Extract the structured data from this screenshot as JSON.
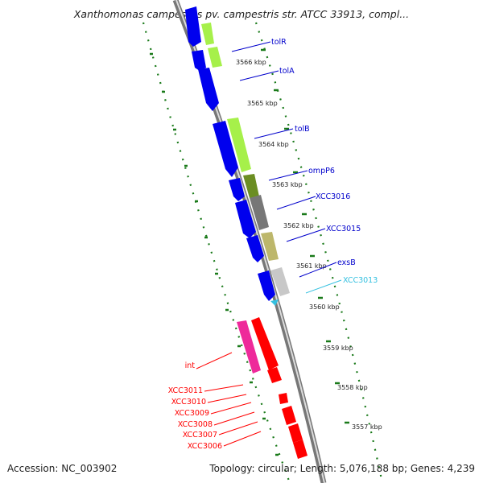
{
  "title": "Xanthomonas campestris pv. campestris str. ATCC 33913, compl...",
  "footer": {
    "accession": "Accession: NC_003902",
    "summary": "Topology: circular; Length: 5,076,188 bp; Genes: 4,239"
  },
  "kbp_ticks": [
    "3566 kbp",
    "3565 kbp",
    "3564 kbp",
    "3563 kbp",
    "3562 kbp",
    "3561 kbp",
    "3560 kbp",
    "3559 kbp",
    "3558 kbp",
    "3557 kbp"
  ],
  "gene_labels": [
    "tolR",
    "tolA",
    "tolB",
    "ompP6",
    "XCC3016",
    "XCC3015",
    "exsB",
    "XCC3013",
    "int",
    "XCC3011",
    "XCC3010",
    "XCC3009",
    "XCC3008",
    "XCC3007",
    "XCC3006"
  ],
  "colors": {
    "blue_gene": "#0000ee",
    "lime_gene": "#a6f04a",
    "olive_gene": "#6b8e23",
    "gray_gene": "#777777",
    "khaki_gene": "#bdb76b",
    "light_gray_gene": "#c8c8c8",
    "magenta_gene": "#ee2a9a",
    "red_gene": "#ff0000",
    "cyan_label": "#33c0e0",
    "tick_green": "#1a7a1a"
  }
}
